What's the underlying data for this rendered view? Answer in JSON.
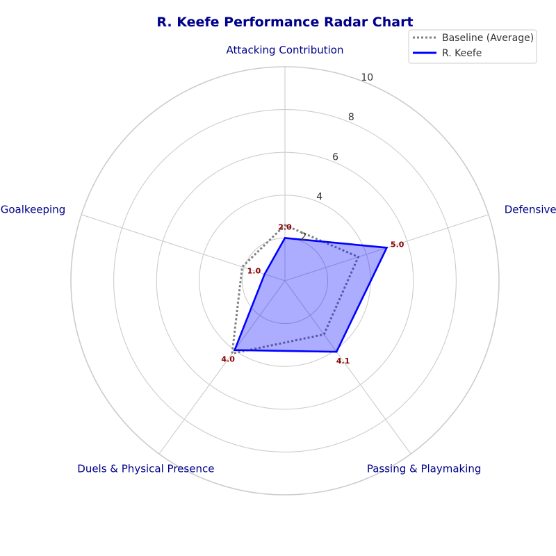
{
  "chart_data": {
    "type": "radar",
    "title": "R. Keefe Performance Radar Chart",
    "categories": [
      "Attacking Contribution",
      "Defensive Capability",
      "Passing & Playmaking",
      "Duels & Physical Presence",
      "Discipline & Goalkeeping"
    ],
    "rlim": [
      0,
      10
    ],
    "r_ticks": [
      "2",
      "4",
      "6",
      "8",
      "10"
    ],
    "grid": true,
    "legend_position": "top-right",
    "series": [
      {
        "name": "Baseline (Average)",
        "values": [
          2.6,
          3.6,
          3.1,
          4.2,
          2.1
        ],
        "color": "#808080",
        "style": "dotted",
        "fill": false
      },
      {
        "name": "R. Keefe",
        "values": [
          2.0,
          5.0,
          4.1,
          4.0,
          1.0
        ],
        "color": "#0000ff",
        "style": "solid",
        "fill": true,
        "fill_color": "#0000ff",
        "value_labels": [
          "2.0",
          "5.0",
          "4.1",
          "4.0",
          "1.0"
        ]
      }
    ]
  }
}
